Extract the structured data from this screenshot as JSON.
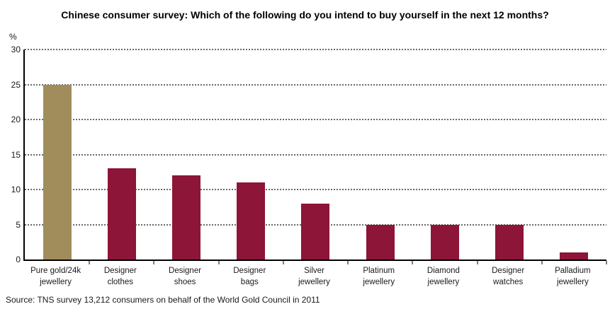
{
  "chart_data": {
    "type": "bar",
    "title": "Chinese consumer survey: Which of the following do you intend to buy yourself in the next 12 months?",
    "categories": [
      "Pure gold/24k jewellery",
      "Designer clothes",
      "Designer shoes",
      "Designer bags",
      "Silver jewellery",
      "Platinum jewellery",
      "Diamond jewellery",
      "Designer watches",
      "Palladium jewellery"
    ],
    "labels": [
      {
        "line1": "Pure gold/24k",
        "line2": "jewellery"
      },
      {
        "line1": "Designer",
        "line2": "clothes"
      },
      {
        "line1": "Designer",
        "line2": "shoes"
      },
      {
        "line1": "Designer",
        "line2": "bags"
      },
      {
        "line1": "Silver",
        "line2": "jewellery"
      },
      {
        "line1": "Platinum",
        "line2": "jewellery"
      },
      {
        "line1": "Diamond",
        "line2": "jewellery"
      },
      {
        "line1": "Designer",
        "line2": "watches"
      },
      {
        "line1": "Palladium",
        "line2": "jewellery"
      }
    ],
    "values": [
      25,
      13,
      12,
      11,
      8,
      5,
      5,
      5,
      1
    ],
    "bar_colors": [
      "#A18D5C",
      "#8D1537",
      "#8D1537",
      "#8D1537",
      "#8D1537",
      "#8D1537",
      "#8D1537",
      "#8D1537",
      "#8D1537"
    ],
    "xlabel": "",
    "ylabel": "%",
    "ylim": [
      0,
      30
    ],
    "grid": "horizontal-dotted",
    "legend": "none"
  },
  "y_axis": {
    "unit_label": "%",
    "tick_labels": [
      "30",
      "25",
      "20",
      "15",
      "10",
      "5",
      "0"
    ],
    "tick_values": [
      30,
      25,
      20,
      15,
      10,
      5,
      0
    ],
    "grid_values": [
      5,
      10,
      15,
      20,
      25,
      30
    ]
  },
  "source": "Source: TNS survey 13,212 consumers on behalf of the World Gold Council in 2011",
  "colors": {
    "highlight_bar": "#A18D5C",
    "default_bar": "#8D1537",
    "axis": "#000000",
    "gridline": "#4d4d4d",
    "title_text": "#000000"
  }
}
